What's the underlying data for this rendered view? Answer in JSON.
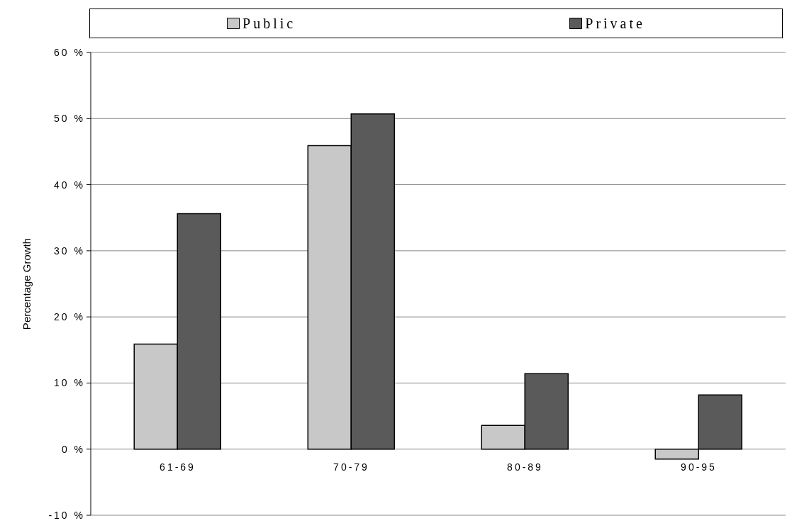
{
  "chart_data": {
    "type": "bar",
    "ylabel": "Percentage Growth",
    "categories": [
      "61-69",
      "70-79",
      "80-89",
      "90-95"
    ],
    "series": [
      {
        "name": "Public",
        "color": "#c8c8c8",
        "values": [
          15.9,
          45.9,
          3.6,
          -1.5
        ]
      },
      {
        "name": "Private",
        "color": "#5a5a5a",
        "values": [
          35.6,
          50.7,
          11.4,
          8.2
        ]
      }
    ],
    "ylim": [
      -10,
      60
    ],
    "yticks": [
      {
        "value": -10,
        "label": "-10 %"
      },
      {
        "value": 0,
        "label": "0 %"
      },
      {
        "value": 10,
        "label": "10 %"
      },
      {
        "value": 20,
        "label": "20 %"
      },
      {
        "value": 30,
        "label": "30 %"
      },
      {
        "value": 40,
        "label": "40 %"
      },
      {
        "value": 50,
        "label": "50 %"
      },
      {
        "value": 60,
        "label": "60 %"
      }
    ],
    "grid": "y",
    "legend": "top"
  }
}
